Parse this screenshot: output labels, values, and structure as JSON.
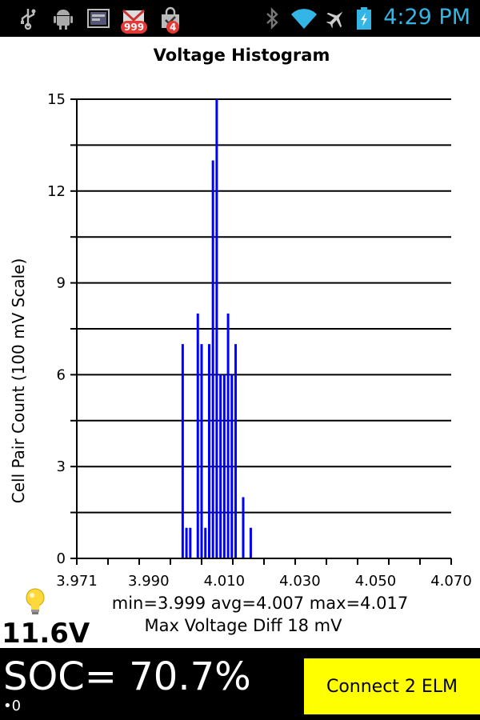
{
  "status_bar": {
    "time": "4:29 PM",
    "notification_icons": [
      "usb-icon",
      "android-debug-icon",
      "screenshot-icon",
      "gmail-icon",
      "shopping-bag-icon"
    ],
    "gmail_badge": "999",
    "bag_badge": "4",
    "system_icons": [
      "bluetooth-icon",
      "wifi-icon",
      "airplane-icon",
      "battery-charging-icon"
    ]
  },
  "chart_data": {
    "type": "bar",
    "title": "Voltage Histogram",
    "ylabel": "Cell Pair Count (100 mV Scale)",
    "xlabel": "",
    "xlim": [
      3.971,
      4.07
    ],
    "ylim": [
      0,
      15
    ],
    "x_ticks": [
      "3.971",
      "3.990",
      "4.010",
      "4.030",
      "4.050",
      "4.070"
    ],
    "y_ticks": [
      "0",
      "3",
      "6",
      "9",
      "12",
      "15"
    ],
    "bar_color": "#0000ff",
    "grid": true,
    "x": [
      3.999,
      4.0,
      4.001,
      4.003,
      4.004,
      4.005,
      4.006,
      4.007,
      4.008,
      4.009,
      4.01,
      4.011,
      4.012,
      4.013,
      4.015,
      4.017
    ],
    "values": [
      7,
      1,
      1,
      8,
      7,
      1,
      7,
      13,
      15,
      6,
      6,
      8,
      6,
      7,
      2,
      1
    ]
  },
  "stats": {
    "summary": "min=3.999  avg=4.007  max=4.017",
    "max_diff": "Max Voltage Diff 18 mV"
  },
  "bottom": {
    "voltage": "11.6V",
    "soc": "SOC= 70.7%",
    "sub": "•0",
    "connect_label": "Connect 2 ELM"
  },
  "colors": {
    "accent": "#33b5e5",
    "button": "#ffff00",
    "bars": "#0000ff"
  }
}
